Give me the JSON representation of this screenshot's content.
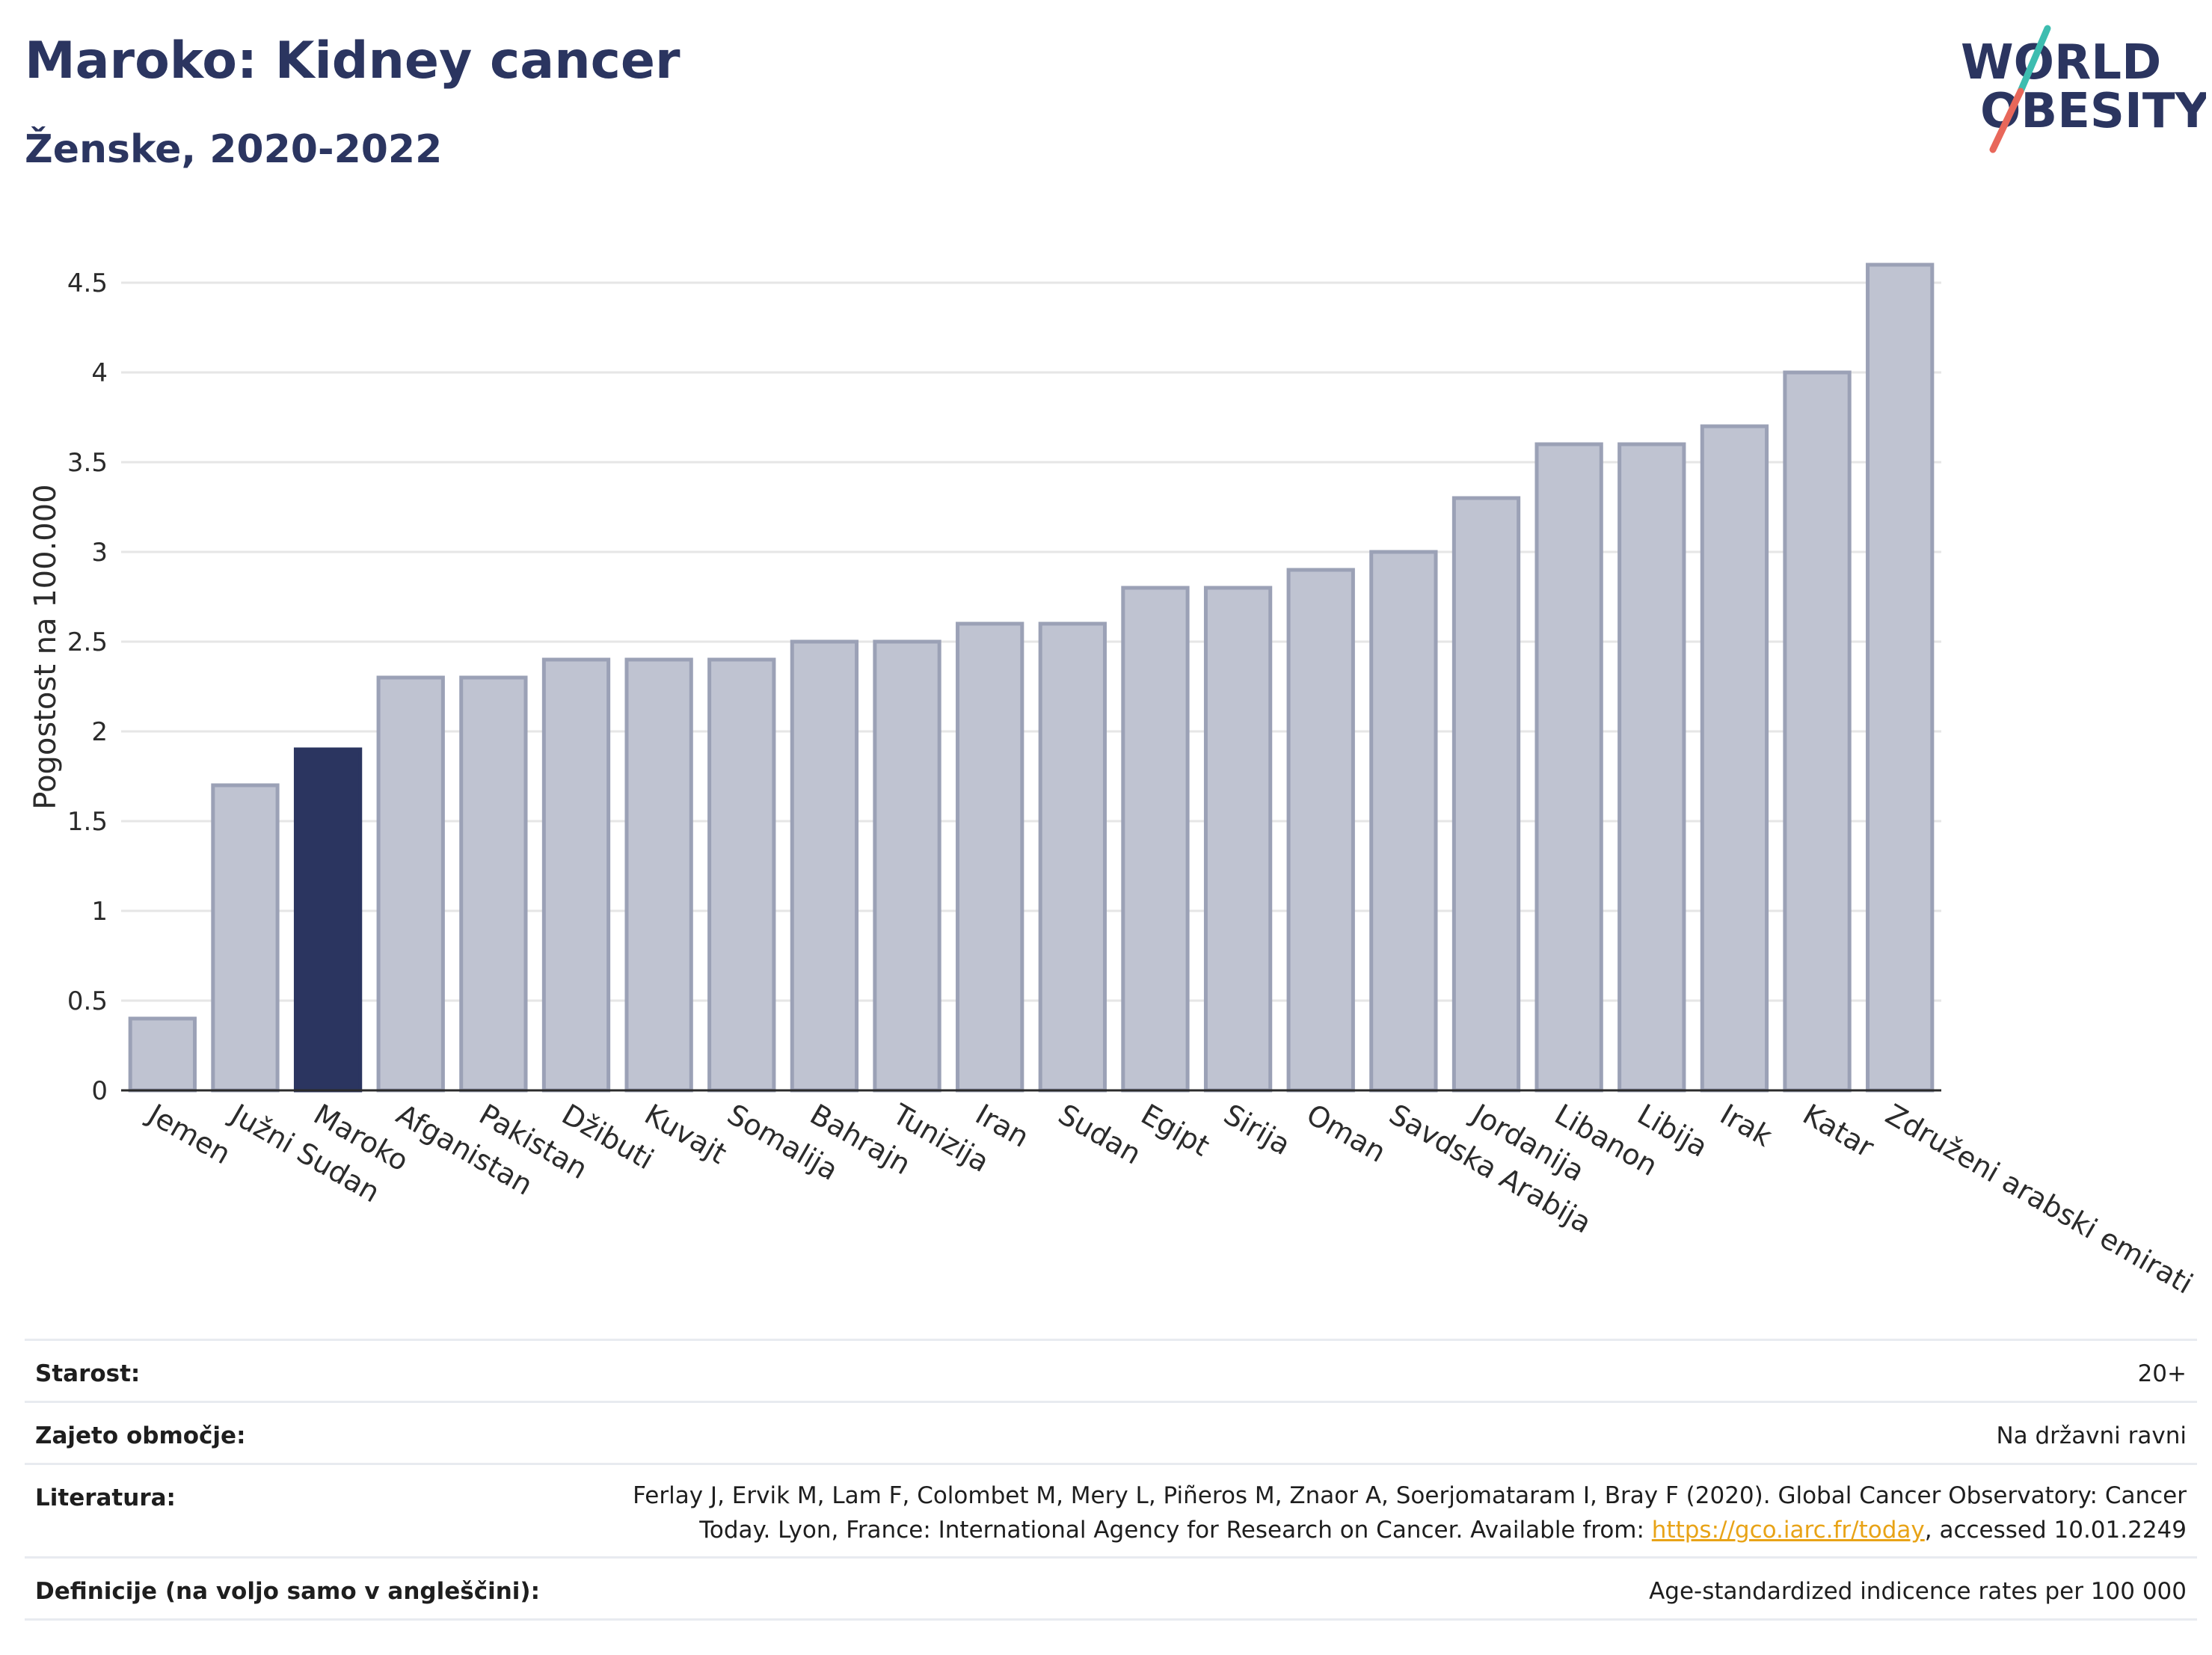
{
  "header": {
    "title": "Maroko: Kidney cancer",
    "subtitle": "Ženske, 2020-2022"
  },
  "logo": {
    "line1": "WORLD",
    "line2": "OBESITY",
    "colors": {
      "text": "#2b3560",
      "slash_top": "#3dbdb0",
      "slash_bottom": "#e8675a"
    }
  },
  "chart_data": {
    "type": "bar",
    "title": "Maroko: Kidney cancer",
    "subtitle": "Ženske, 2020-2022",
    "xlabel": "",
    "ylabel": "Pogostost na 100.000",
    "ylim": [
      0,
      4.7
    ],
    "yticks": [
      0,
      0.5,
      1,
      1.5,
      2,
      2.5,
      3,
      3.5,
      4,
      4.5
    ],
    "ytick_labels": [
      "0",
      "0.5",
      "1",
      "1.5",
      "2",
      "2.5",
      "3",
      "3.5",
      "4",
      "4.5"
    ],
    "grid": true,
    "highlight": "Maroko",
    "colors": {
      "default": "#bfc3d1",
      "default_border": "#9ba1b6",
      "highlight": "#2b3560",
      "axis": "#2b2b2b",
      "grid": "#e6e6e6"
    },
    "categories": [
      "Jemen",
      "Južni Sudan",
      "Maroko",
      "Afganistan",
      "Pakistan",
      "Džibuti",
      "Kuvajt",
      "Somalija",
      "Bahrajn",
      "Tunizija",
      "Iran",
      "Sudan",
      "Egipt",
      "Sirija",
      "Oman",
      "Savdska Arabija",
      "Jordanija",
      "Libanon",
      "Libija",
      "Irak",
      "Katar",
      "Združeni arabski emirati"
    ],
    "values": [
      0.4,
      1.7,
      1.9,
      2.3,
      2.3,
      2.4,
      2.4,
      2.4,
      2.5,
      2.5,
      2.6,
      2.6,
      2.8,
      2.8,
      2.9,
      3.0,
      3.3,
      3.6,
      3.6,
      3.7,
      4.0,
      4.6
    ]
  },
  "meta": {
    "age_label": "Starost:",
    "age_value": "20+",
    "area_label": "Zajeto območje:",
    "area_value": "Na državni ravni",
    "lit_label": "Literatura:",
    "lit_text_1": "Ferlay J, Ervik M, Lam F, Colombet M, Mery L, Piñeros M, Znaor A, Soerjomataram I, Bray F (2020). Global Cancer Observatory: Cancer Today. Lyon, France: International Agency for Research on Cancer. Available from: ",
    "lit_link": "https://gco.iarc.fr/today",
    "lit_text_2": ", accessed 10.01.2249",
    "def_label": "Definicije (na voljo samo v angleščini):",
    "def_value": "Age-standardized indicence rates per 100 000"
  }
}
